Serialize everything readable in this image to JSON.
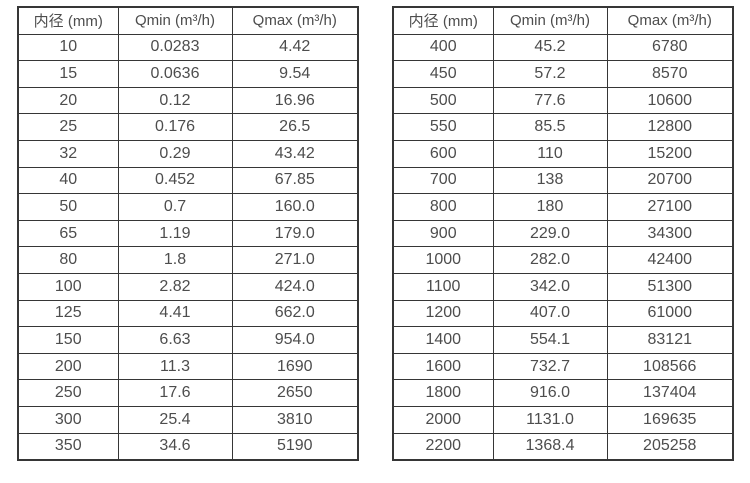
{
  "page": {
    "background_color": "#ffffff",
    "text_color": "#4d4d4d",
    "border_color": "#363636"
  },
  "left_table": {
    "headers": [
      "内径 (mm)",
      "Qmin (m³/h)",
      "Qmax (m³/h)"
    ],
    "rows": [
      [
        "10",
        "0.0283",
        "4.42"
      ],
      [
        "15",
        "0.0636",
        "9.54"
      ],
      [
        "20",
        "0.12",
        "16.96"
      ],
      [
        "25",
        "0.176",
        "26.5"
      ],
      [
        "32",
        "0.29",
        "43.42"
      ],
      [
        "40",
        "0.452",
        "67.85"
      ],
      [
        "50",
        "0.7",
        "160.0"
      ],
      [
        "65",
        "1.19",
        "179.0"
      ],
      [
        "80",
        "1.8",
        "271.0"
      ],
      [
        "100",
        "2.82",
        "424.0"
      ],
      [
        "125",
        "4.41",
        "662.0"
      ],
      [
        "150",
        "6.63",
        "954.0"
      ],
      [
        "200",
        "11.3",
        "1690"
      ],
      [
        "250",
        "17.6",
        "2650"
      ],
      [
        "300",
        "25.4",
        "3810"
      ],
      [
        "350",
        "34.6",
        "5190"
      ]
    ]
  },
  "right_table": {
    "headers": [
      "内径 (mm)",
      "Qmin (m³/h)",
      "Qmax (m³/h)"
    ],
    "rows": [
      [
        "400",
        "45.2",
        "6780"
      ],
      [
        "450",
        "57.2",
        "8570"
      ],
      [
        "500",
        "77.6",
        "10600"
      ],
      [
        "550",
        "85.5",
        "12800"
      ],
      [
        "600",
        "110",
        "15200"
      ],
      [
        "700",
        "138",
        "20700"
      ],
      [
        "800",
        "180",
        "27100"
      ],
      [
        "900",
        "229.0",
        "34300"
      ],
      [
        "1000",
        "282.0",
        "42400"
      ],
      [
        "1100",
        "342.0",
        "51300"
      ],
      [
        "1200",
        "407.0",
        "61000"
      ],
      [
        "1400",
        "554.1",
        "83121"
      ],
      [
        "1600",
        "732.7",
        "108566"
      ],
      [
        "1800",
        "916.0",
        "137404"
      ],
      [
        "2000",
        "1131.0",
        "169635"
      ],
      [
        "2200",
        "1368.4",
        "205258"
      ]
    ]
  }
}
